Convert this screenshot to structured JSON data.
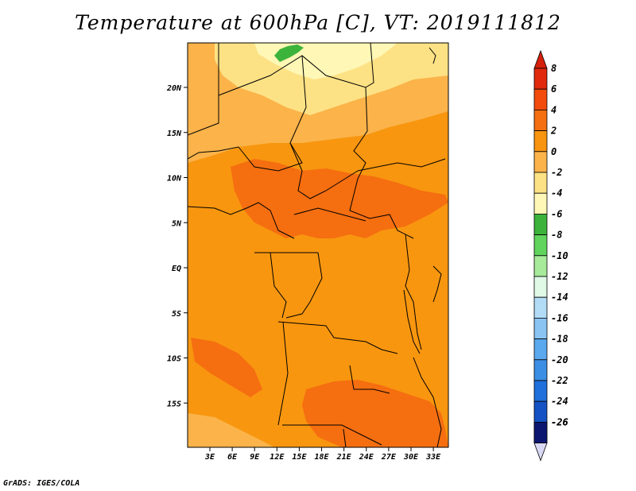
{
  "title": "Temperature at 600hPa [C], VT: 2019111812",
  "credit": "GrADS: IGES/COLA",
  "lat_labels": [
    {
      "lat": 20,
      "text": "20N"
    },
    {
      "lat": 15,
      "text": "15N"
    },
    {
      "lat": 10,
      "text": "10N"
    },
    {
      "lat": 5,
      "text": "5N"
    },
    {
      "lat": 0,
      "text": "EQ"
    },
    {
      "lat": -5,
      "text": "5S"
    },
    {
      "lat": -10,
      "text": "10S"
    },
    {
      "lat": -15,
      "text": "15S"
    }
  ],
  "lon_labels": [
    {
      "lon": 3,
      "text": "3E"
    },
    {
      "lon": 6,
      "text": "6E"
    },
    {
      "lon": 9,
      "text": "9E"
    },
    {
      "lon": 12,
      "text": "12E"
    },
    {
      "lon": 15,
      "text": "15E"
    },
    {
      "lon": 18,
      "text": "18E"
    },
    {
      "lon": 21,
      "text": "21E"
    },
    {
      "lon": 24,
      "text": "24E"
    },
    {
      "lon": 27,
      "text": "27E"
    },
    {
      "lon": 30,
      "text": "30E"
    },
    {
      "lon": 33,
      "text": "33E"
    }
  ],
  "colorbar": [
    {
      "label": "8",
      "color": "#e0290d"
    },
    {
      "label": "6",
      "color": "#f24b0c"
    },
    {
      "label": "4",
      "color": "#f56e10"
    },
    {
      "label": "2",
      "color": "#f8940f"
    },
    {
      "label": "0",
      "color": "#fbb34a"
    },
    {
      "label": "-2",
      "color": "#fde285"
    },
    {
      "label": "-4",
      "color": "#fff7b5"
    },
    {
      "label": "-6",
      "color": "#3cb43c"
    },
    {
      "label": "-8",
      "color": "#60d45c"
    },
    {
      "label": "-10",
      "color": "#a6ea9a"
    },
    {
      "label": "-12",
      "color": "#e0f8e6"
    },
    {
      "label": "-14",
      "color": "#b2dcf6"
    },
    {
      "label": "-16",
      "color": "#8ac4f2"
    },
    {
      "label": "-18",
      "color": "#5aa8ee"
    },
    {
      "label": "-20",
      "color": "#3a8ee4"
    },
    {
      "label": "-22",
      "color": "#1f6fdc"
    },
    {
      "label": "-24",
      "color": "#1451c4"
    },
    {
      "label": "-26",
      "color": "#0c2f9a"
    }
  ],
  "colorbar_tip_top": "#d4200c",
  "colorbar_tip_bottom": "#d8d8f4",
  "colorbar_extra_color": "#0a1670",
  "map_colors": {
    "base": "#f8960f",
    "warm": "#f56e10",
    "mild": "#fbb34a",
    "cool": "#fde285",
    "cold": "#fff7b5",
    "green": "#3cb43c"
  }
}
